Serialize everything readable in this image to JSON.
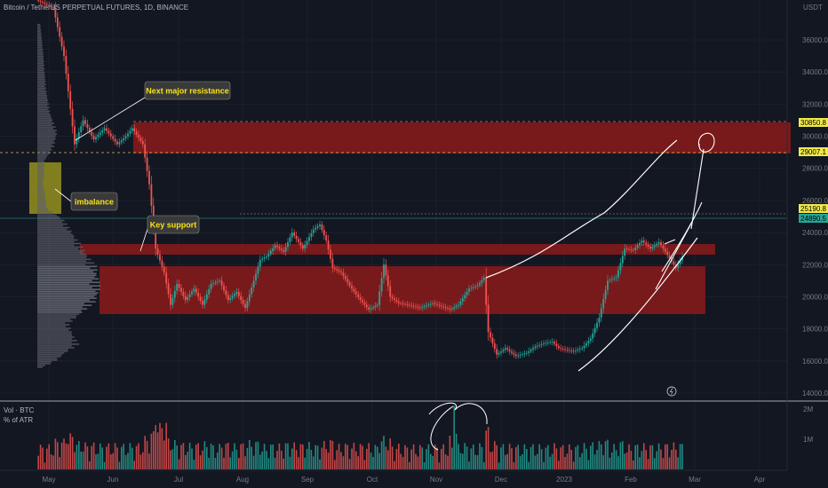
{
  "symbol_title": "Bitcoin / TetherUS PERPETUAL FUTURES, 1D, BINANCE",
  "volume_label": "Vol · BTC",
  "atr_label": "% of ATR",
  "currency": "USDT",
  "colors": {
    "background": "#131722",
    "up": "#26a69a",
    "down": "#ef5350",
    "zone": "#b71c1c",
    "note_bg": "#3a3a3a",
    "note_text": "#f5e31a",
    "imbalance": "#8e8a1f"
  },
  "annotations": {
    "resistance": "Next major resistance",
    "imbalance": "imbalance",
    "support": "Key support"
  },
  "price_labels": {
    "high": "30850.8",
    "mid": "29007.1",
    "current_high": "25190.8",
    "last": "24890.5"
  },
  "volume_axis": [
    "2M",
    "1M"
  ],
  "chart_data": {
    "type": "candlestick",
    "x": [
      "May",
      "Jun",
      "Jul",
      "Aug",
      "Sep",
      "Oct",
      "Nov",
      "Dec",
      "2023",
      "Feb",
      "Mar",
      "Apr"
    ],
    "y_ticks": [
      36000,
      34000,
      32000,
      30000,
      28000,
      26000,
      24000,
      22000,
      20000,
      18000,
      16000,
      14000
    ],
    "ylim": [
      13800,
      38200
    ],
    "y_unit": "USDT",
    "price_path": [
      [
        0,
        38500
      ],
      [
        8,
        38000
      ],
      [
        13,
        35000
      ],
      [
        18,
        29500
      ],
      [
        22,
        31000
      ],
      [
        27,
        29800
      ],
      [
        32,
        30500
      ],
      [
        38,
        29500
      ],
      [
        42,
        30000
      ],
      [
        45,
        30500
      ],
      [
        50,
        29500
      ],
      [
        53,
        27000
      ],
      [
        56,
        23000
      ],
      [
        60,
        21500
      ],
      [
        63,
        19500
      ],
      [
        66,
        20800
      ],
      [
        70,
        19800
      ],
      [
        74,
        20500
      ],
      [
        78,
        19500
      ],
      [
        82,
        20800
      ],
      [
        86,
        21000
      ],
      [
        90,
        19800
      ],
      [
        94,
        20300
      ],
      [
        98,
        19300
      ],
      [
        102,
        21000
      ],
      [
        105,
        22300
      ],
      [
        108,
        22500
      ],
      [
        112,
        23200
      ],
      [
        116,
        22800
      ],
      [
        120,
        24000
      ],
      [
        125,
        23000
      ],
      [
        130,
        24200
      ],
      [
        133,
        24500
      ],
      [
        136,
        23500
      ],
      [
        139,
        21800
      ],
      [
        143,
        21500
      ],
      [
        148,
        20500
      ],
      [
        152,
        19800
      ],
      [
        156,
        19200
      ],
      [
        160,
        19500
      ],
      [
        163,
        22000
      ],
      [
        166,
        20000
      ],
      [
        170,
        19600
      ],
      [
        174,
        19500
      ],
      [
        180,
        19300
      ],
      [
        186,
        19600
      ],
      [
        190,
        19400
      ],
      [
        194,
        19200
      ],
      [
        198,
        19500
      ],
      [
        203,
        20500
      ],
      [
        207,
        20700
      ],
      [
        210,
        21200
      ],
      [
        212,
        17800
      ],
      [
        216,
        16400
      ],
      [
        220,
        16800
      ],
      [
        225,
        16300
      ],
      [
        230,
        16500
      ],
      [
        234,
        16900
      ],
      [
        238,
        17100
      ],
      [
        242,
        17200
      ],
      [
        245,
        16800
      ],
      [
        248,
        16700
      ],
      [
        252,
        16600
      ],
      [
        256,
        16800
      ],
      [
        260,
        17400
      ],
      [
        264,
        18700
      ],
      [
        268,
        21000
      ],
      [
        272,
        21200
      ],
      [
        276,
        23000
      ],
      [
        280,
        22900
      ],
      [
        284,
        23500
      ],
      [
        288,
        23000
      ],
      [
        292,
        23400
      ],
      [
        296,
        22600
      ],
      [
        300,
        21800
      ],
      [
        303,
        22500
      ],
      [
        306,
        24500
      ],
      [
        309,
        24600
      ],
      [
        312,
        24890
      ]
    ],
    "volume_profile": [
      [
        37000,
        0.05
      ],
      [
        35000,
        0.1
      ],
      [
        33000,
        0.14
      ],
      [
        31500,
        0.2
      ],
      [
        30200,
        0.32
      ],
      [
        29300,
        0.26
      ],
      [
        28500,
        0.12
      ],
      [
        27000,
        0.1
      ],
      [
        25500,
        0.16
      ],
      [
        24800,
        0.42
      ],
      [
        24000,
        0.56
      ],
      [
        23200,
        0.7
      ],
      [
        22500,
        0.82
      ],
      [
        21800,
        0.95
      ],
      [
        21000,
        0.98
      ],
      [
        20300,
        1.0
      ],
      [
        19700,
        0.92
      ],
      [
        19000,
        0.72
      ],
      [
        18300,
        0.5
      ],
      [
        17600,
        0.58
      ],
      [
        17000,
        0.66
      ],
      [
        16500,
        0.45
      ],
      [
        16000,
        0.3
      ],
      [
        15600,
        0.08
      ]
    ],
    "zones": [
      {
        "name": "resistance zone",
        "from": 29000,
        "to": 30850
      },
      {
        "name": "support band",
        "from": 22800,
        "to": 23550
      },
      {
        "name": "demand zone",
        "from": 19000,
        "to": 21900
      }
    ]
  }
}
